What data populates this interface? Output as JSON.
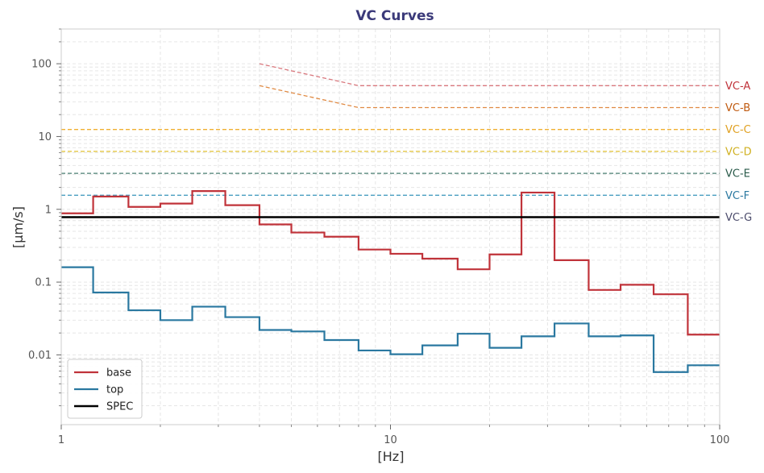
{
  "chart_data": {
    "type": "line",
    "title": "VC Curves",
    "xlabel": "[Hz]",
    "ylabel": "[µm/s]",
    "xscale": "log",
    "yscale": "log",
    "xlim": [
      1,
      100
    ],
    "ylim": [
      0.0011,
      300
    ],
    "x_ticks": [
      {
        "value": 1,
        "label": "1"
      },
      {
        "value": 10,
        "label": "10"
      },
      {
        "value": 100,
        "label": "100"
      }
    ],
    "y_ticks": [
      {
        "value": 0.01,
        "label": "0.01"
      },
      {
        "value": 0.1,
        "label": "0.1"
      },
      {
        "value": 1,
        "label": "1"
      },
      {
        "value": 10,
        "label": "10"
      },
      {
        "value": 100,
        "label": "100"
      }
    ],
    "grid": true,
    "legend": {
      "position": "bottom-left",
      "entries": [
        {
          "name": "base",
          "color": "#c0333a"
        },
        {
          "name": "top",
          "color": "#2a78a0"
        },
        {
          "name": "SPEC",
          "color": "#000000"
        }
      ]
    },
    "band_edges": [
      1,
      1.25,
      1.6,
      2,
      2.5,
      3.15,
      4,
      5,
      6.3,
      8,
      10,
      12.5,
      16,
      20,
      25,
      31.5,
      40,
      50,
      63,
      80,
      100
    ],
    "series": [
      {
        "name": "base",
        "color": "#c0333a",
        "values": [
          0.88,
          1.5,
          1.08,
          1.2,
          1.78,
          1.14,
          0.62,
          0.48,
          0.42,
          0.28,
          0.245,
          0.21,
          0.15,
          0.24,
          1.7,
          0.2,
          0.078,
          0.092,
          0.068,
          0.019
        ]
      },
      {
        "name": "top",
        "color": "#2a78a0",
        "values": [
          0.16,
          0.072,
          0.041,
          0.03,
          0.046,
          0.033,
          0.022,
          0.021,
          0.016,
          0.0115,
          0.0102,
          0.0135,
          0.0195,
          0.0125,
          0.018,
          0.027,
          0.018,
          0.0185,
          0.0058,
          0.0072
        ]
      },
      {
        "name": "SPEC",
        "color": "#000000",
        "x": [
          1,
          100
        ],
        "values": [
          0.78,
          0.78
        ]
      }
    ],
    "vc_curves": [
      {
        "name": "VC-A",
        "color": "#d9777d",
        "x": [
          4,
          8,
          100
        ],
        "values": [
          100,
          50,
          50
        ]
      },
      {
        "name": "VC-B",
        "color": "#e08a43",
        "x": [
          4,
          8,
          100
        ],
        "values": [
          50,
          25,
          25
        ]
      },
      {
        "name": "VC-C",
        "color": "#f0b030",
        "x": [
          1,
          100
        ],
        "values": [
          12.5,
          12.5
        ]
      },
      {
        "name": "VC-D",
        "color": "#e0c030",
        "x": [
          1,
          100
        ],
        "values": [
          6.25,
          6.25
        ]
      },
      {
        "name": "VC-E",
        "color": "#4a7f72",
        "x": [
          1,
          100
        ],
        "values": [
          3.12,
          3.12
        ]
      },
      {
        "name": "VC-F",
        "color": "#4a9ec0",
        "x": [
          1,
          100
        ],
        "values": [
          1.56,
          1.56
        ]
      },
      {
        "name": "VC-G",
        "color": "#4b4b6b",
        "x": [
          1,
          100
        ],
        "values": [
          0.78,
          0.78
        ]
      }
    ],
    "vc_label_colors": {
      "VC-A": "#c0333a",
      "VC-B": "#c05a10",
      "VC-C": "#e0a020",
      "VC-D": "#d0b020",
      "VC-E": "#2a5a4a",
      "VC-F": "#2a78a0",
      "VC-G": "#4b4b6b"
    }
  }
}
